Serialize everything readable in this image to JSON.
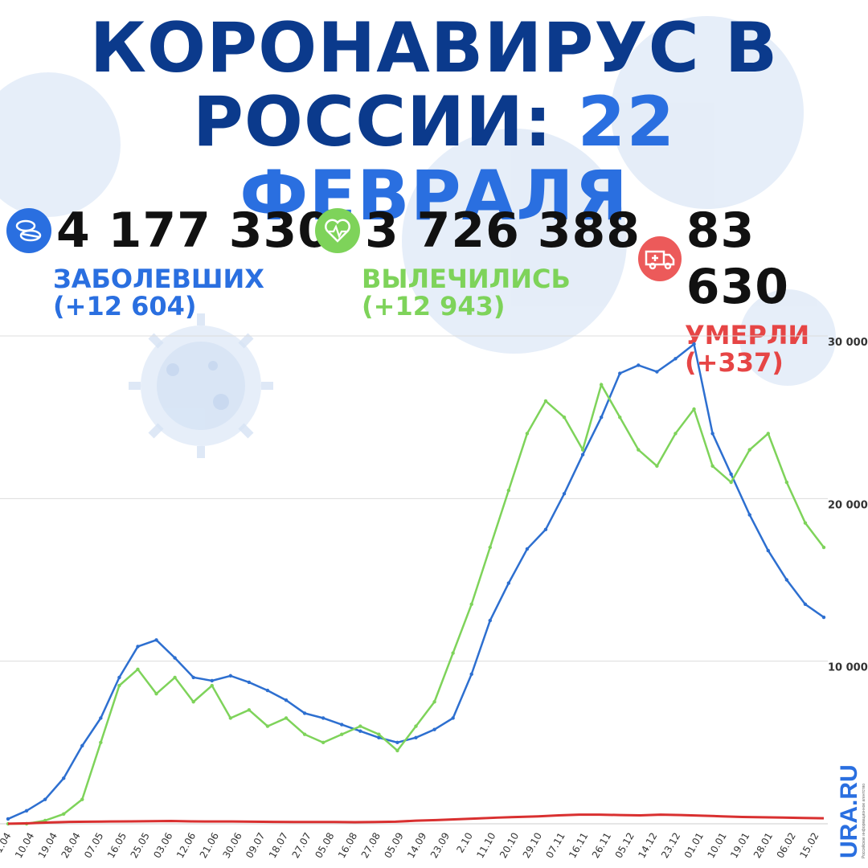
{
  "header": {
    "title_line1": "КОРОНАВИРУС В",
    "title_line2_a": "РОССИИ:",
    "title_line2_b": "22 ФЕВРАЛЯ"
  },
  "stats": [
    {
      "value": "4 177 330",
      "label": "ЗАБОЛЕВШИХ",
      "delta": "(+12 604)",
      "color": "#2a6fe0",
      "icon": "pills-icon"
    },
    {
      "value": "3 726 388",
      "label": "ВЫЛЕЧИЛИСЬ",
      "delta": "(+12 943)",
      "color": "#7ed35a",
      "icon": "heart-pulse-icon"
    },
    {
      "value": "83 630",
      "label": "УМЕРЛИ",
      "delta": "(+337)",
      "color": "#e64545",
      "icon": "ambulance-icon"
    }
  ],
  "brand": {
    "name": "URA.RU",
    "tagline": "Российское информационное агентство"
  },
  "chart_data": {
    "type": "line",
    "title": "",
    "xlabel": "",
    "ylabel": "",
    "ylim": [
      0,
      30000
    ],
    "y_ticks": [
      10000,
      20000,
      30000
    ],
    "y_tick_labels": [
      "10 000",
      "20 000",
      "30 000"
    ],
    "grid": true,
    "x_tick_labels": [
      "1.04",
      "10.04",
      "19.04",
      "28.04",
      "07.05",
      "16.05",
      "25.05",
      "03.06",
      "12.06",
      "21.06",
      "30.06",
      "09.07",
      "18.07",
      "27.07",
      "05.08",
      "16.08",
      "27.08",
      "05.09",
      "14.09",
      "23.09",
      "2.10",
      "11.10",
      "20.10",
      "29.10",
      "07.11",
      "16.11",
      "26.11",
      "05.12",
      "14.12",
      "23.12",
      "01.01",
      "10.01",
      "19.01",
      "28.01",
      "06.02",
      "15.02"
    ],
    "series": [
      {
        "name": "",
        "color": "#2d6fd0",
        "values": [
          300,
          800,
          1500,
          2800,
          4800,
          6500,
          9000,
          10900,
          11300,
          10200,
          9000,
          8800,
          9100,
          8700,
          8200,
          7600,
          6800,
          6500,
          6100,
          5700,
          5300,
          5000,
          5300,
          5800,
          6500,
          9200,
          12500,
          14800,
          16900,
          18100,
          20300,
          22700,
          25000,
          27700,
          28200,
          27800,
          28600,
          29500,
          24000,
          21500,
          19000,
          16800,
          15000,
          13500,
          12700
        ],
        "interval_days": 7
      },
      {
        "name": "",
        "color": "#7ed35a",
        "values": [
          0,
          0,
          200,
          600,
          1500,
          5000,
          8500,
          9500,
          8000,
          9000,
          7500,
          8500,
          6500,
          7000,
          6000,
          6500,
          5500,
          5000,
          5500,
          6000,
          5500,
          4500,
          6000,
          7500,
          10500,
          13500,
          17000,
          20500,
          24000,
          26000,
          25000,
          23000,
          27000,
          25000,
          23000,
          22000,
          24000,
          25500,
          22000,
          21000,
          23000,
          24000,
          21000,
          18500,
          17000
        ],
        "interval_days": 7
      },
      {
        "name": "",
        "color": "#d93030",
        "values": [
          5,
          30,
          80,
          120,
          130,
          140,
          150,
          160,
          170,
          150,
          140,
          140,
          130,
          120,
          110,
          110,
          110,
          100,
          110,
          130,
          190,
          230,
          280,
          330,
          380,
          420,
          460,
          520,
          560,
          560,
          540,
          520,
          560,
          540,
          500,
          460,
          420,
          400,
          380,
          360,
          340
        ],
        "interval_days": 7
      }
    ]
  }
}
